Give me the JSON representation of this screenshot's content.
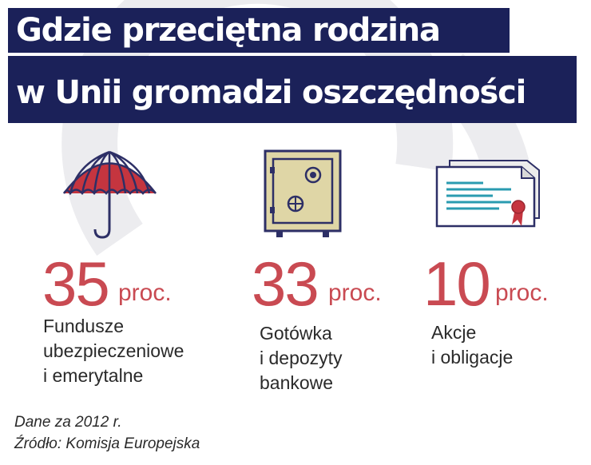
{
  "header": {
    "title_line1": "Gdzie przeciętna rodzina",
    "title_line2": "w Unii gromadzi oszczędności"
  },
  "colors": {
    "title_bg": "#1b2159",
    "accent": "#c94a52",
    "text": "#2a2a2a"
  },
  "chart_data": {
    "type": "table",
    "title": "Gdzie przeciętna rodzina w Unii gromadzi oszczędności",
    "unit": "proc.",
    "items": [
      {
        "value": 35,
        "value_text": "35",
        "unit": "proc.",
        "label": "Fundusze\nubezpieczeniowe\ni emerytalne",
        "icon": "umbrella-icon"
      },
      {
        "value": 33,
        "value_text": "33",
        "unit": "proc.",
        "label": "Gotówka\ni depozyty\nbankowe",
        "icon": "safe-icon"
      },
      {
        "value": 10,
        "value_text": "10",
        "unit": "proc.",
        "label": "Akcje\ni obligacje",
        "icon": "certificate-icon"
      }
    ]
  },
  "footer": {
    "data_note": "Dane za 2012 r.",
    "source": "Źródło: Komisja Europejska"
  }
}
